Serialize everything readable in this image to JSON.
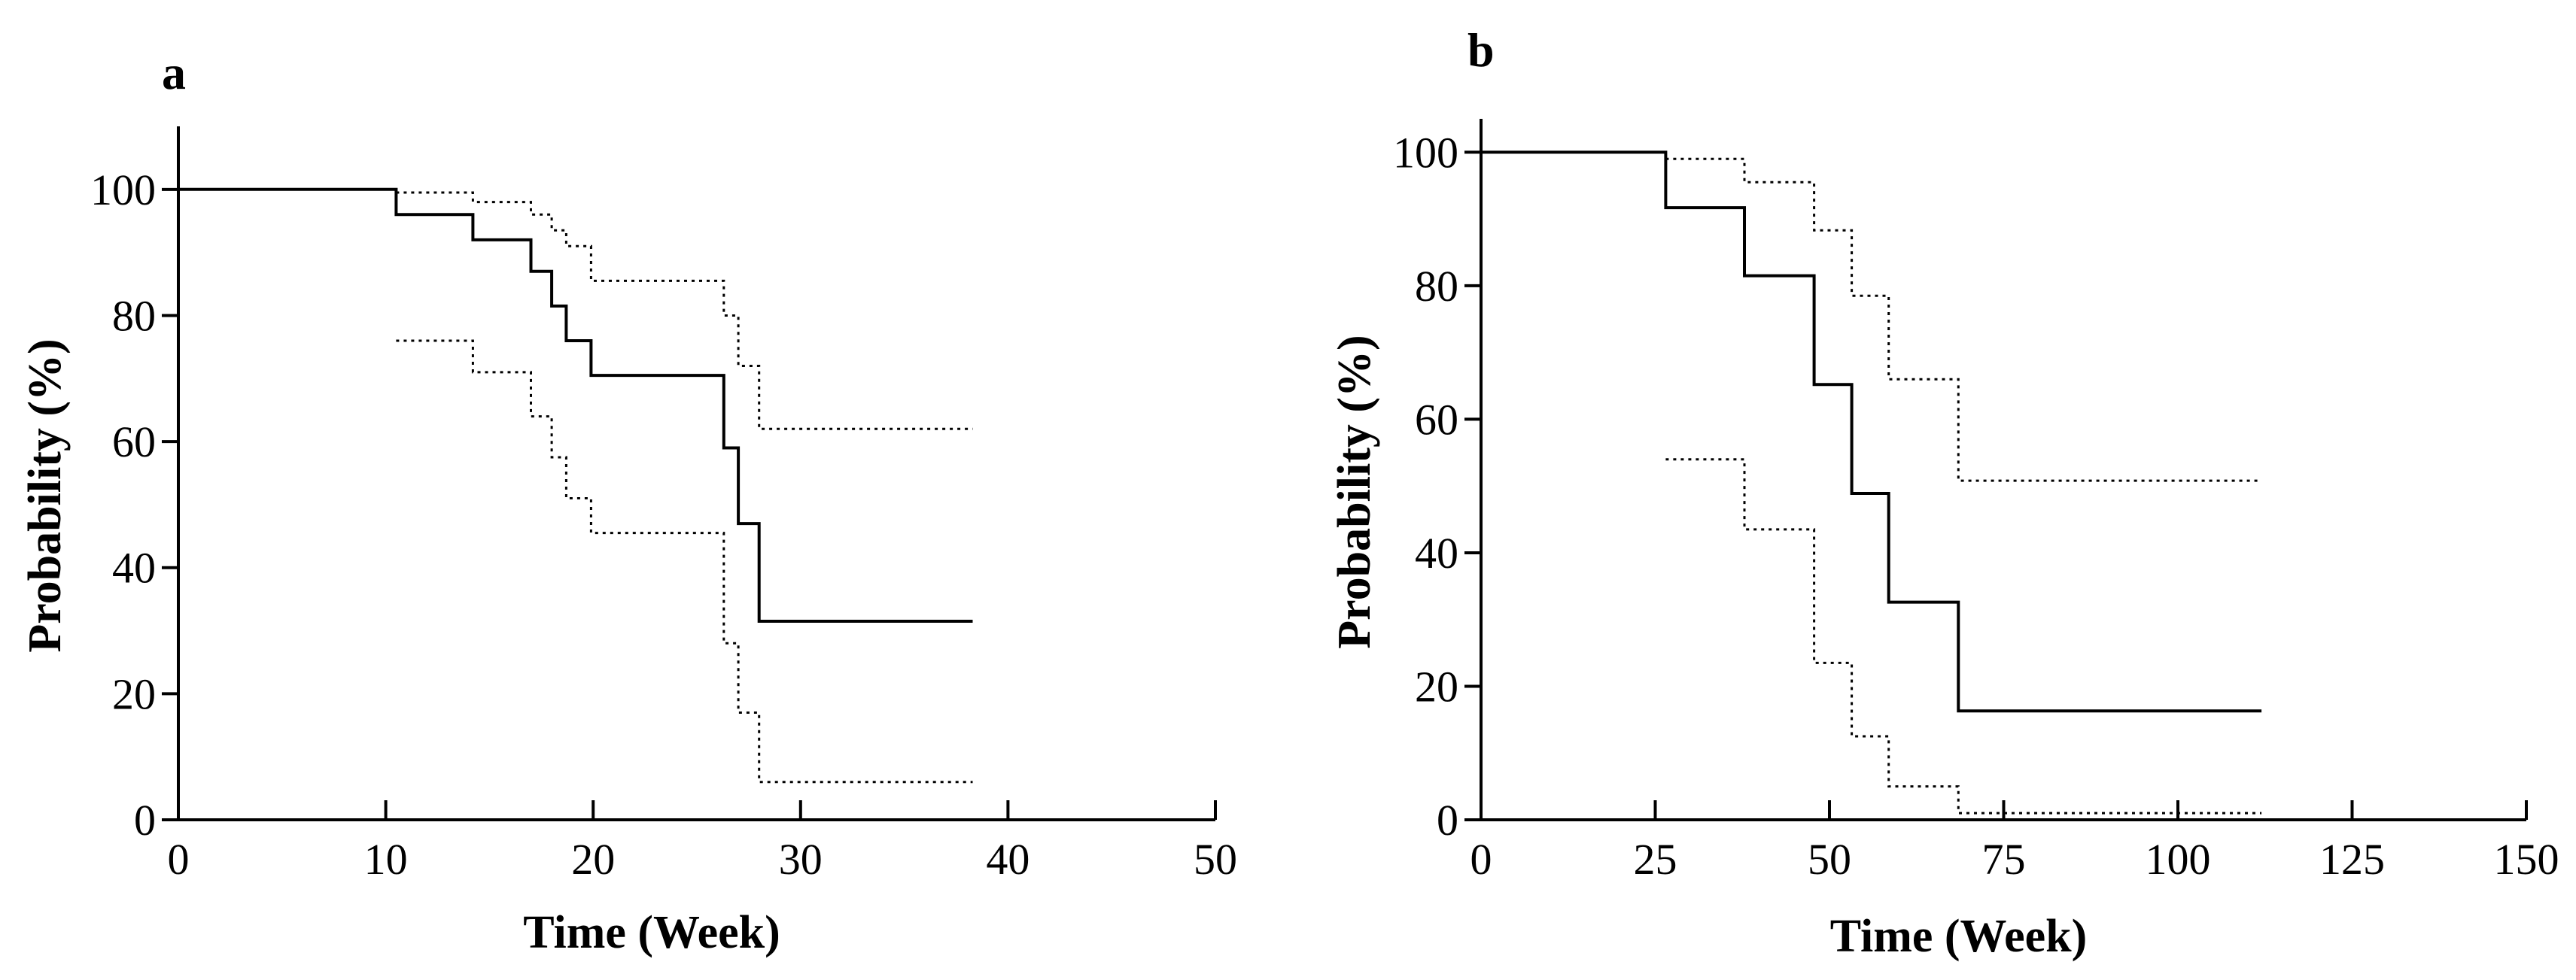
{
  "chart_data": [
    {
      "type": "line",
      "panel_label": "a",
      "title": "",
      "xlabel": "Time (Week)",
      "ylabel": "Probability (%)",
      "xlim": [
        0,
        50
      ],
      "ylim": [
        0,
        110
      ],
      "xticks": [
        0,
        10,
        20,
        30,
        40,
        50
      ],
      "yticks": [
        0,
        20,
        40,
        60,
        80,
        100
      ],
      "grid": false,
      "series": [
        {
          "style": "solid",
          "step": true,
          "points": [
            [
              0,
              100
            ],
            [
              10.5,
              100
            ],
            [
              10.5,
              96
            ],
            [
              14.2,
              96
            ],
            [
              14.2,
              92
            ],
            [
              17,
              92
            ],
            [
              17,
              87
            ],
            [
              18,
              87
            ],
            [
              18,
              81.5
            ],
            [
              18.7,
              81.5
            ],
            [
              18.7,
              76
            ],
            [
              19.9,
              76
            ],
            [
              19.9,
              70.5
            ],
            [
              26.3,
              70.5
            ],
            [
              26.3,
              59
            ],
            [
              27,
              59
            ],
            [
              27,
              47
            ],
            [
              28,
              47
            ],
            [
              28,
              31.5
            ],
            [
              38.3,
              31.5
            ]
          ]
        },
        {
          "style": "dotted",
          "step": true,
          "points": [
            [
              10.5,
              99.5
            ],
            [
              14.2,
              99.5
            ],
            [
              14.2,
              98
            ],
            [
              17,
              98
            ],
            [
              17,
              96
            ],
            [
              18,
              96
            ],
            [
              18,
              93.5
            ],
            [
              18.7,
              93.5
            ],
            [
              18.7,
              91
            ],
            [
              19.9,
              91
            ],
            [
              19.9,
              85.5
            ],
            [
              26.3,
              85.5
            ],
            [
              26.3,
              80
            ],
            [
              27,
              80
            ],
            [
              27,
              72
            ],
            [
              28,
              72
            ],
            [
              28,
              62
            ],
            [
              38.3,
              62
            ]
          ]
        },
        {
          "style": "dotted",
          "step": true,
          "points": [
            [
              10.5,
              76
            ],
            [
              14.2,
              76
            ],
            [
              14.2,
              71
            ],
            [
              17,
              71
            ],
            [
              17,
              64
            ],
            [
              18,
              64
            ],
            [
              18,
              57.5
            ],
            [
              18.7,
              57.5
            ],
            [
              18.7,
              51
            ],
            [
              19.9,
              51
            ],
            [
              19.9,
              45.5
            ],
            [
              26.3,
              45.5
            ],
            [
              26.3,
              28
            ],
            [
              27,
              28
            ],
            [
              27,
              17
            ],
            [
              28,
              17
            ],
            [
              28,
              6
            ],
            [
              38.3,
              6
            ]
          ]
        }
      ]
    },
    {
      "type": "line",
      "panel_label": "b",
      "title": "",
      "xlabel": "Time (Week)",
      "ylabel": "Probability (%)",
      "xlim": [
        0,
        150
      ],
      "ylim": [
        0,
        105
      ],
      "xticks": [
        0,
        25,
        50,
        75,
        100,
        125,
        150
      ],
      "yticks": [
        0,
        20,
        40,
        60,
        80,
        100
      ],
      "grid": false,
      "series": [
        {
          "style": "solid",
          "step": true,
          "points": [
            [
              0,
              100
            ],
            [
              26.5,
              100
            ],
            [
              26.5,
              91.7
            ],
            [
              37.8,
              91.7
            ],
            [
              37.8,
              81.5
            ],
            [
              47.8,
              81.5
            ],
            [
              47.8,
              65.2
            ],
            [
              53.2,
              65.2
            ],
            [
              53.2,
              48.9
            ],
            [
              58.5,
              48.9
            ],
            [
              58.5,
              32.6
            ],
            [
              68.5,
              32.6
            ],
            [
              68.5,
              16.3
            ],
            [
              112,
              16.3
            ]
          ]
        },
        {
          "style": "dotted",
          "step": true,
          "points": [
            [
              26.5,
              99
            ],
            [
              37.8,
              99
            ],
            [
              37.8,
              95.5
            ],
            [
              47.8,
              95.5
            ],
            [
              47.8,
              88.3
            ],
            [
              53.2,
              88.3
            ],
            [
              53.2,
              78.5
            ],
            [
              58.5,
              78.5
            ],
            [
              58.5,
              66
            ],
            [
              68.5,
              66
            ],
            [
              68.5,
              50.8
            ],
            [
              112,
              50.8
            ]
          ]
        },
        {
          "style": "dotted",
          "step": true,
          "points": [
            [
              26.5,
              54
            ],
            [
              37.8,
              54
            ],
            [
              37.8,
              43.5
            ],
            [
              47.8,
              43.5
            ],
            [
              47.8,
              23.5
            ],
            [
              53.2,
              23.5
            ],
            [
              53.2,
              12.5
            ],
            [
              58.5,
              12.5
            ],
            [
              58.5,
              5
            ],
            [
              68.5,
              5
            ],
            [
              68.5,
              1
            ],
            [
              112,
              1
            ]
          ]
        }
      ]
    }
  ]
}
